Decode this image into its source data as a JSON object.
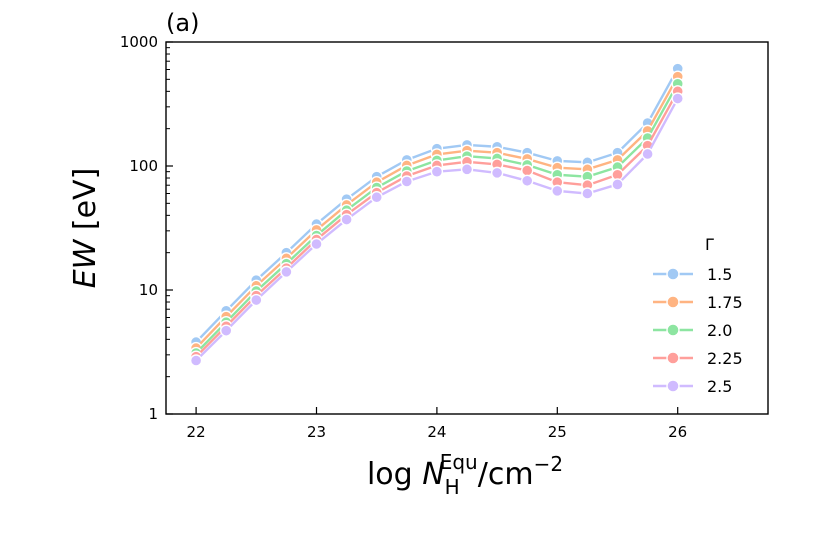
{
  "chart_data": {
    "type": "line",
    "panel_label": "(a)",
    "xlabel": {
      "prefix": "log ",
      "var": "N",
      "sub": "H",
      "sup": "Equ",
      "unit": "/cm",
      "unit_sup": "−2"
    },
    "ylabel": {
      "var": "EW",
      "unit": " [eV]"
    },
    "xlim": [
      21.75,
      26.75
    ],
    "ylim": [
      1,
      1000
    ],
    "yscale": "log",
    "x_ticks": [
      22,
      23,
      24,
      25,
      26
    ],
    "x_tick_labels": [
      "22",
      "23",
      "24",
      "25",
      "26"
    ],
    "y_ticks": [
      1,
      10,
      100,
      1000
    ],
    "y_tick_labels": [
      "1",
      "10",
      "100",
      "1000"
    ],
    "legend_title": "Γ",
    "legend_position": "center-right",
    "x": [
      22,
      22.25,
      22.5,
      22.75,
      23,
      23.25,
      23.5,
      23.75,
      24,
      24.25,
      24.5,
      24.75,
      25,
      25.25,
      25.5,
      25.75,
      26
    ],
    "series": [
      {
        "name": "1.5",
        "color": "#a1c9f4",
        "values": [
          3.8,
          6.8,
          12.0,
          20.0,
          34.0,
          54.0,
          82.0,
          112.0,
          138.0,
          148.0,
          143.0,
          128.0,
          110.0,
          107.0,
          128.0,
          222.0,
          610.0
        ]
      },
      {
        "name": "1.75",
        "color": "#ffb482",
        "values": [
          3.4,
          6.1,
          10.8,
          18.0,
          30.5,
          48.5,
          74.0,
          101.0,
          124.0,
          133.0,
          128.0,
          114.0,
          97.0,
          94.0,
          112.0,
          192.0,
          525.0
        ]
      },
      {
        "name": "2.0",
        "color": "#8de5a1",
        "values": [
          3.1,
          5.5,
          9.8,
          16.3,
          27.5,
          44.0,
          67.0,
          91.0,
          111.0,
          120.0,
          115.0,
          102.0,
          85.0,
          82.0,
          98.0,
          168.0,
          460.0
        ]
      },
      {
        "name": "2.25",
        "color": "#ff9f9b",
        "values": [
          2.9,
          5.1,
          9.0,
          15.0,
          25.5,
          40.5,
          61.0,
          83.0,
          101.0,
          108.0,
          103.0,
          92.0,
          74.0,
          70.0,
          85.0,
          146.0,
          400.0
        ]
      },
      {
        "name": "2.5",
        "color": "#d0bbff",
        "values": [
          2.7,
          4.7,
          8.3,
          14.0,
          23.5,
          37.0,
          56.0,
          75.0,
          90.0,
          94.0,
          88.0,
          76.0,
          63.0,
          60.0,
          71.0,
          125.0,
          350.0
        ]
      }
    ]
  }
}
